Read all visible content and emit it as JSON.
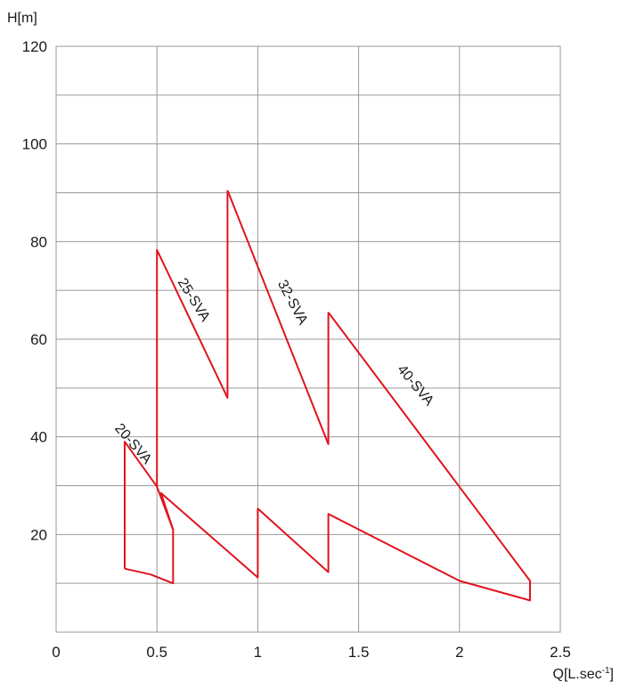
{
  "chart_data": {
    "type": "line",
    "title": "",
    "xlabel": "Q[L.sec-1]",
    "ylabel": "H[m]",
    "xlim": [
      0,
      2.5
    ],
    "ylim": [
      0,
      120
    ],
    "x_ticks": [
      "0",
      "0.5",
      "1",
      "1.5",
      "2",
      "2.5"
    ],
    "y_ticks": [
      "20",
      "40",
      "60",
      "80",
      "100",
      "120"
    ],
    "grid": true,
    "line_color": "#e0141e",
    "grid_color": "#9a9a9a",
    "series": [
      {
        "name": "20-SVA",
        "points": [
          [
            0.34,
            13.0
          ],
          [
            0.34,
            39.0
          ],
          [
            0.5,
            29.8
          ],
          [
            0.58,
            21.0
          ],
          [
            0.58,
            10.0
          ],
          [
            0.47,
            11.8
          ],
          [
            0.34,
            13.0
          ]
        ]
      },
      {
        "name": "25-SVA",
        "points": [
          [
            0.5,
            29.8
          ],
          [
            0.5,
            78.3
          ],
          [
            0.85,
            48.0
          ],
          [
            0.85,
            90.5
          ]
        ]
      },
      {
        "name": "32-SVA",
        "points": [
          [
            0.85,
            90.5
          ],
          [
            1.35,
            38.5
          ],
          [
            1.35,
            65.5
          ]
        ]
      },
      {
        "name": "40-SVA",
        "points": [
          [
            1.35,
            65.5
          ],
          [
            2.35,
            10.5
          ],
          [
            2.35,
            6.5
          ],
          [
            2.0,
            10.5
          ],
          [
            1.35,
            24.2
          ],
          [
            1.35,
            12.3
          ],
          [
            1.0,
            25.3
          ],
          [
            1.0,
            11.2
          ],
          [
            0.52,
            28.5
          ],
          [
            0.58,
            21.0
          ]
        ]
      }
    ],
    "annotations": [
      {
        "text": "20-SVA",
        "x": 0.38,
        "y": 38.5,
        "angle": 49
      },
      {
        "text": "25-SVA",
        "x": 0.68,
        "y": 68.0,
        "angle": 58
      },
      {
        "text": "32-SVA",
        "x": 1.17,
        "y": 67.5,
        "angle": 62
      },
      {
        "text": "40-SVA",
        "x": 1.78,
        "y": 50.5,
        "angle": 50
      }
    ]
  }
}
